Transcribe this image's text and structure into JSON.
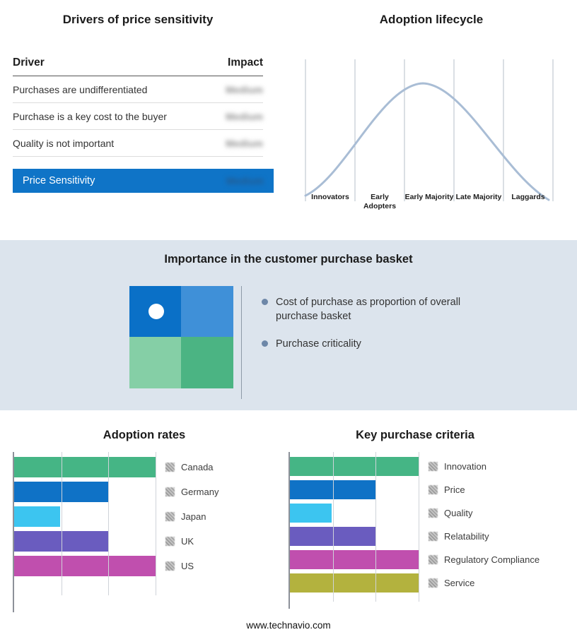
{
  "drivers": {
    "title": "Drivers of price sensitivity",
    "columns": {
      "driver": "Driver",
      "impact": "Impact"
    },
    "rows": [
      {
        "driver": "Purchases are undifferentiated",
        "impact": "Medium"
      },
      {
        "driver": "Purchase is a key cost to the buyer",
        "impact": "Medium"
      },
      {
        "driver": "Quality is not important",
        "impact": "Medium"
      }
    ],
    "summary_label": "Price Sensitivity",
    "summary_impact": "Medium",
    "accent_color": "#0f74c7",
    "impact_values_blurred": true
  },
  "lifecycle": {
    "title": "Adoption lifecycle",
    "stages": [
      "Innovators",
      "Early Adopters",
      "Early Majority",
      "Late Majority",
      "Laggards"
    ],
    "curve_color": "#a9bdd5"
  },
  "basket": {
    "title": "Importance in the customer purchase basket",
    "bullets": [
      "Cost of purchase as proportion of overall purchase basket",
      "Purchase criticality"
    ],
    "band_color": "#dce4ed",
    "quadrant_colors": {
      "top_left": "#0a70c7",
      "top_right": "#3f90d8",
      "bottom_left": "#85cfa6",
      "bottom_right": "#4bb483"
    }
  },
  "chart_data": [
    {
      "type": "bar",
      "orientation": "horizontal",
      "title": "Adoption rates",
      "categories": [
        "Canada",
        "Germany",
        "Japan",
        "UK",
        "US"
      ],
      "values": [
        3,
        2,
        1,
        2,
        3
      ],
      "xlim": [
        0,
        3
      ],
      "grid": true,
      "legend_position": "right",
      "legend_swatches_blurred": true,
      "colors": [
        "#45b585",
        "#0f72c6",
        "#3cc5f0",
        "#6a5cbf",
        "#c04fae"
      ]
    },
    {
      "type": "bar",
      "orientation": "horizontal",
      "title": "Key purchase criteria",
      "categories": [
        "Innovation",
        "Price",
        "Quality",
        "Relatability",
        "Regulatory Compliance",
        "Service"
      ],
      "values": [
        3,
        2,
        1,
        2,
        3,
        3
      ],
      "xlim": [
        0,
        3
      ],
      "grid": true,
      "legend_position": "right",
      "legend_swatches_blurred": true,
      "colors": [
        "#45b585",
        "#0f72c6",
        "#3cc5f0",
        "#6a5cbf",
        "#c04fae",
        "#b3b23e"
      ]
    }
  ],
  "footer": {
    "url": "www.technavio.com"
  }
}
